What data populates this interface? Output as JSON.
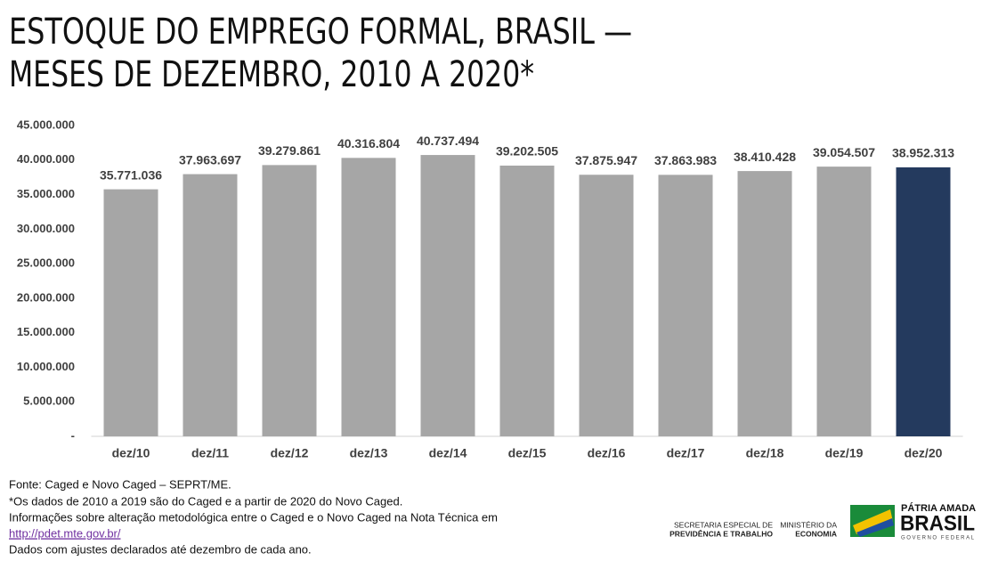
{
  "chart_data": {
    "type": "bar",
    "title": [
      "ESTOQUE DO EMPREGO FORMAL, BRASIL —",
      "MESES DE DEZEMBRO, 2010 A 2020*"
    ],
    "categories": [
      "dez/10",
      "dez/11",
      "dez/12",
      "dez/13",
      "dez/14",
      "dez/15",
      "dez/16",
      "dez/17",
      "dez/18",
      "dez/19",
      "dez/20"
    ],
    "values": [
      35771036,
      37963697,
      39279861,
      40316804,
      40737494,
      39202505,
      37875947,
      37863983,
      38410428,
      39054507,
      38952313
    ],
    "value_labels": [
      "35.771.036",
      "37.963.697",
      "39.279.861",
      "40.316.804",
      "40.737.494",
      "39.202.505",
      "37.875.947",
      "37.863.983",
      "38.410.428",
      "39.054.507",
      "38.952.313"
    ],
    "colors": [
      "#a6a6a6",
      "#a6a6a6",
      "#a6a6a6",
      "#a6a6a6",
      "#a6a6a6",
      "#a6a6a6",
      "#a6a6a6",
      "#a6a6a6",
      "#a6a6a6",
      "#a6a6a6",
      "#243a5e"
    ],
    "ylim": [
      0,
      45000000
    ],
    "yticks": [
      {
        "value": 0,
        "label": "-"
      },
      {
        "value": 5000000,
        "label": "5.000.000"
      },
      {
        "value": 10000000,
        "label": "10.000.000"
      },
      {
        "value": 15000000,
        "label": "15.000.000"
      },
      {
        "value": 20000000,
        "label": "20.000.000"
      },
      {
        "value": 25000000,
        "label": "25.000.000"
      },
      {
        "value": 30000000,
        "label": "30.000.000"
      },
      {
        "value": 35000000,
        "label": "35.000.000"
      },
      {
        "value": 40000000,
        "label": "40.000.000"
      },
      {
        "value": 45000000,
        "label": "45.000.000"
      }
    ],
    "grid": false
  },
  "footer": {
    "notes": [
      "Fonte: Caged e Novo Caged – SEPRT/ME.",
      "*Os dados de 2010 a 2019 são do Caged e a partir de 2020 do Novo Caged.",
      "Informações sobre alteração metodológica entre o Caged e o Novo Caged na Nota Técnica em"
    ],
    "link": "http://pdet.mte.gov.br/",
    "last_note": "Dados com ajustes declarados até dezembro de cada ano.",
    "secretaria": [
      "SECRETARIA ESPECIAL DE",
      "PREVIDÊNCIA E TRABALHO"
    ],
    "ministerio": [
      "MINISTÉRIO DA",
      "ECONOMIA"
    ],
    "brand": [
      "PÁTRIA AMADA",
      "BRASIL",
      "GOVERNO FEDERAL"
    ]
  }
}
